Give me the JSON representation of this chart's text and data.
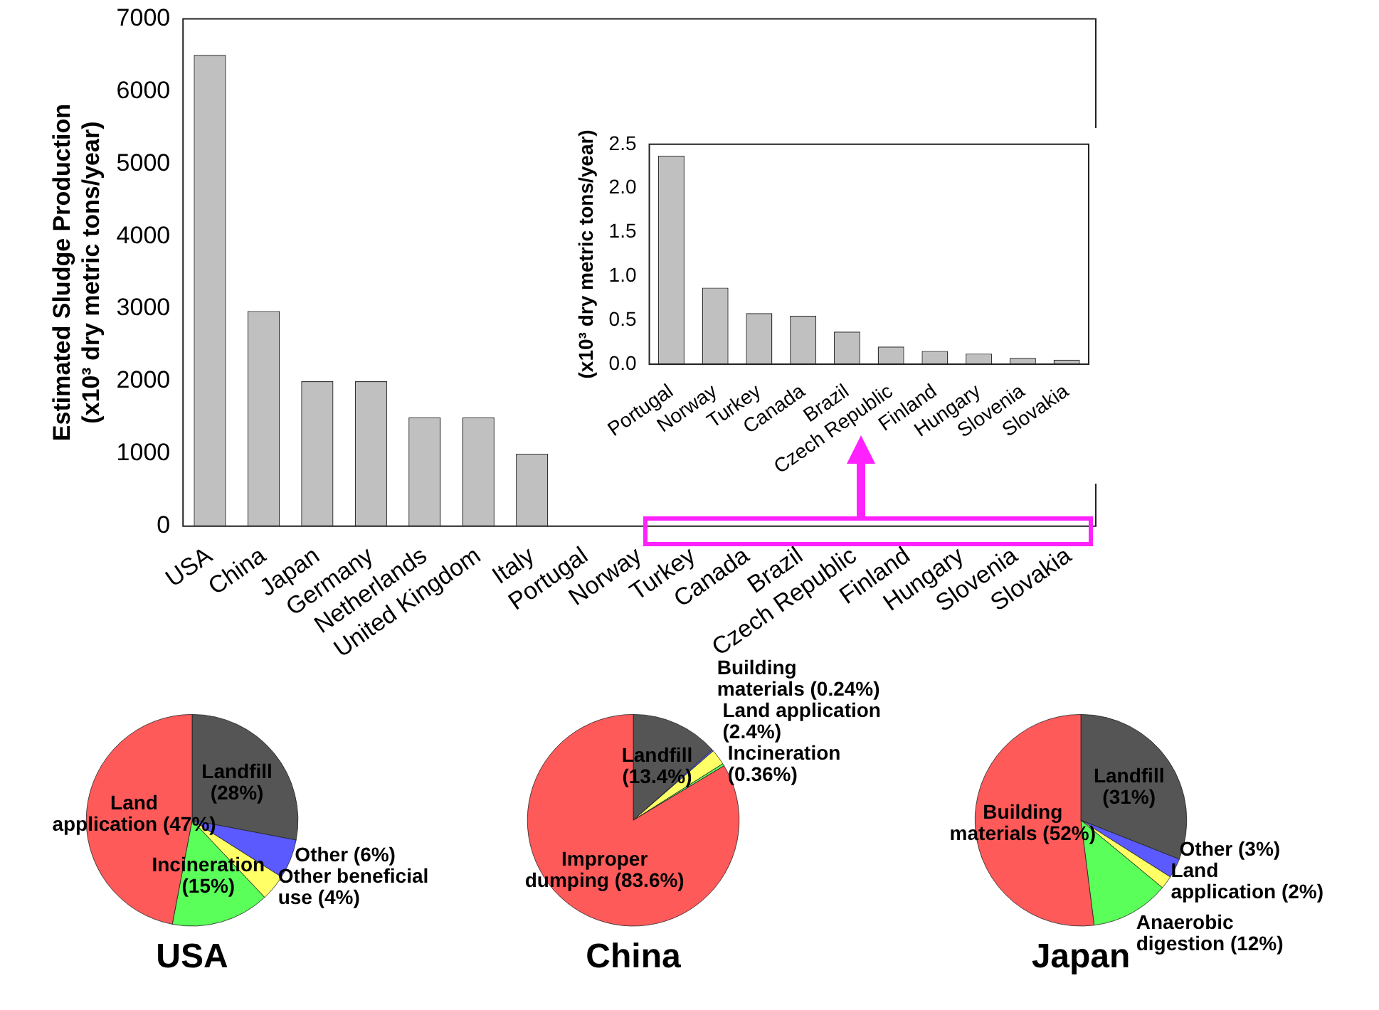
{
  "chart_data": [
    {
      "type": "bar",
      "ylabel": "Estimated Sludge Production\n(x10³ dry metric tons/year)",
      "categories": [
        "USA",
        "China",
        "Japan",
        "Germany",
        "Netherlands",
        "United Kingdom",
        "Italy",
        "Portugal",
        "Norway",
        "Turkey",
        "Canada",
        "Brazil",
        "Czech Republic",
        "Finland",
        "Hungary",
        "Slovenia",
        "Slovakia"
      ],
      "values": [
        6500,
        2970,
        2000,
        2000,
        1500,
        1500,
        1000,
        null,
        null,
        null,
        null,
        null,
        null,
        null,
        null,
        null,
        null
      ],
      "color": "#c0c0c0",
      "ylim": [
        0,
        7000
      ],
      "yticks": [
        0,
        1000,
        2000,
        3000,
        4000,
        5000,
        6000,
        7000
      ]
    },
    {
      "type": "bar",
      "ylabel": "(x10³ dry metric tons/year)",
      "categories": [
        "Portugal",
        "Norway",
        "Turkey",
        "Canada",
        "Brazil",
        "Czech Republic",
        "Finland",
        "Hungary",
        "Slovenia",
        "Slovakia"
      ],
      "values": [
        2.37,
        0.87,
        0.58,
        0.55,
        0.37,
        0.2,
        0.15,
        0.12,
        0.07,
        0.05
      ],
      "color": "#c0c0c0",
      "ylim": [
        0,
        2.5
      ],
      "yticks": [
        {
          "value": 0,
          "label": "0.0"
        },
        {
          "value": 0.5,
          "label": "0.5"
        },
        {
          "value": 1,
          "label": "1.0"
        },
        {
          "value": 1.5,
          "label": "1.5"
        },
        {
          "value": 2,
          "label": "2.0"
        },
        {
          "value": 2.5,
          "label": "2.5"
        }
      ]
    },
    {
      "type": "pie",
      "title": "USA",
      "categories": [
        "Landfill\n(28%)",
        "Other (6%)",
        "Other beneficial\nuse (4%)",
        "Incineration\n(15%)",
        "Land\napplication (47%)"
      ],
      "values": [
        28,
        6,
        4,
        15,
        47
      ],
      "colors": [
        "#555555",
        "#5a5aff",
        "#ffff66",
        "#5aff5a",
        "#ff5a5a"
      ]
    },
    {
      "type": "pie",
      "title": "China",
      "categories": [
        "Landfill\n(13.4%)",
        "Building\nmaterials (0.24%)",
        "Land application\n(2.4%)",
        "Incineration\n(0.36%)",
        "Improper\ndumping (83.6%)"
      ],
      "values": [
        13.4,
        0.24,
        2.4,
        0.36,
        83.6
      ],
      "colors": [
        "#555555",
        "#5a5aff",
        "#ffff66",
        "#5aff5a",
        "#ff5a5a"
      ]
    },
    {
      "type": "pie",
      "title": "Japan",
      "categories": [
        "Landfill\n(31%)",
        "Other (3%)",
        "Land\napplication (2%)",
        "Anaerobic\ndigestion (12%)",
        "Building\nmaterials (52%)"
      ],
      "values": [
        31,
        3,
        2,
        12,
        52
      ],
      "colors": [
        "#555555",
        "#5a5aff",
        "#ffff66",
        "#5aff5a",
        "#ff5a5a"
      ]
    }
  ]
}
